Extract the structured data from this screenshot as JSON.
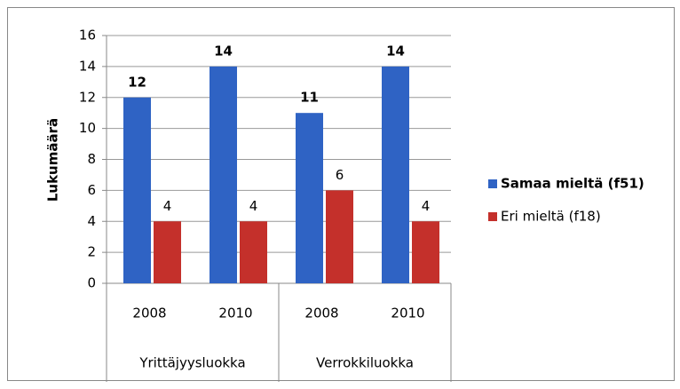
{
  "chart_data": {
    "type": "bar",
    "y_label": "Lukumäärä",
    "categories": [
      "2008",
      "2010",
      "2008",
      "2010"
    ],
    "groups": [
      "Yrittäjyysluokka",
      "Verrokkiluokka"
    ],
    "series": [
      {
        "name": "Samaa mieltä (f51)",
        "color": "#2f63c4",
        "bold": true,
        "values": [
          12,
          14,
          11,
          14
        ]
      },
      {
        "name": "Eri mieltä (f18)",
        "color": "#c4302b",
        "bold": false,
        "values": [
          4,
          4,
          6,
          4
        ]
      }
    ],
    "ylim": [
      0,
      16
    ],
    "yticks": [
      0,
      2,
      4,
      6,
      8,
      10,
      12,
      14,
      16
    ],
    "grid": true,
    "legend": "right"
  }
}
